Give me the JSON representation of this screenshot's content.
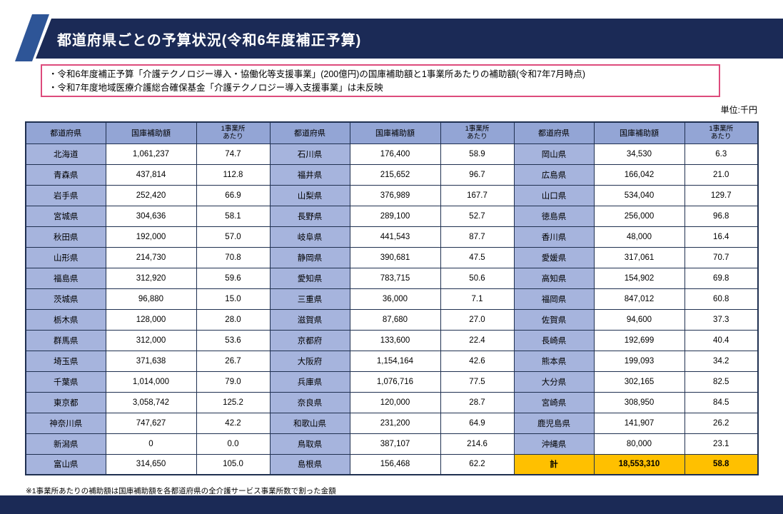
{
  "title": "都道府県ごとの予算状況(令和6年度補正予算)",
  "notes": [
    "・令和6年度補正予算「介護テクノロジー導入・協働化等支援事業」(200億円)の国庫補助額と1事業所あたりの補助額(令和7年7月時点)",
    "・令和7年度地域医療介護総合確保基金「介護テクノロジー導入支援事業」は未反映"
  ],
  "unit_label": "単位:千円",
  "footnote": "※1事業所あたりの補助額は国庫補助額を各都道府県の全介護サービス事業所数で割った金額",
  "colors": {
    "navy": "#1B2A56",
    "accent_blue": "#2E5597",
    "header_blue": "#93A5D5",
    "cell_blue": "#A6B4DD",
    "border": "#1F3050",
    "total_orange": "#FFC000",
    "note_border_pink": "#DD4B7C"
  },
  "table": {
    "col_headers": [
      "都道府県",
      "国庫補助額",
      "1事業所\nあたり"
    ],
    "groups": [
      {
        "rows": [
          [
            "北海道",
            "1,061,237",
            "74.7"
          ],
          [
            "青森県",
            "437,814",
            "112.8"
          ],
          [
            "岩手県",
            "252,420",
            "66.9"
          ],
          [
            "宮城県",
            "304,636",
            "58.1"
          ],
          [
            "秋田県",
            "192,000",
            "57.0"
          ],
          [
            "山形県",
            "214,730",
            "70.8"
          ],
          [
            "福島県",
            "312,920",
            "59.6"
          ],
          [
            "茨城県",
            "96,880",
            "15.0"
          ],
          [
            "栃木県",
            "128,000",
            "28.0"
          ],
          [
            "群馬県",
            "312,000",
            "53.6"
          ],
          [
            "埼玉県",
            "371,638",
            "26.7"
          ],
          [
            "千葉県",
            "1,014,000",
            "79.0"
          ],
          [
            "東京都",
            "3,058,742",
            "125.2"
          ],
          [
            "神奈川県",
            "747,627",
            "42.2"
          ],
          [
            "新潟県",
            "0",
            "0.0"
          ],
          [
            "富山県",
            "314,650",
            "105.0"
          ]
        ]
      },
      {
        "rows": [
          [
            "石川県",
            "176,400",
            "58.9"
          ],
          [
            "福井県",
            "215,652",
            "96.7"
          ],
          [
            "山梨県",
            "376,989",
            "167.7"
          ],
          [
            "長野県",
            "289,100",
            "52.7"
          ],
          [
            "岐阜県",
            "441,543",
            "87.7"
          ],
          [
            "静岡県",
            "390,681",
            "47.5"
          ],
          [
            "愛知県",
            "783,715",
            "50.6"
          ],
          [
            "三重県",
            "36,000",
            "7.1"
          ],
          [
            "滋賀県",
            "87,680",
            "27.0"
          ],
          [
            "京都府",
            "133,600",
            "22.4"
          ],
          [
            "大阪府",
            "1,154,164",
            "42.6"
          ],
          [
            "兵庫県",
            "1,076,716",
            "77.5"
          ],
          [
            "奈良県",
            "120,000",
            "28.7"
          ],
          [
            "和歌山県",
            "231,200",
            "64.9"
          ],
          [
            "鳥取県",
            "387,107",
            "214.6"
          ],
          [
            "島根県",
            "156,468",
            "62.2"
          ]
        ]
      },
      {
        "rows": [
          [
            "岡山県",
            "34,530",
            "6.3"
          ],
          [
            "広島県",
            "166,042",
            "21.0"
          ],
          [
            "山口県",
            "534,040",
            "129.7"
          ],
          [
            "徳島県",
            "256,000",
            "96.8"
          ],
          [
            "香川県",
            "48,000",
            "16.4"
          ],
          [
            "愛媛県",
            "317,061",
            "70.7"
          ],
          [
            "高知県",
            "154,902",
            "69.8"
          ],
          [
            "福岡県",
            "847,012",
            "60.8"
          ],
          [
            "佐賀県",
            "94,600",
            "37.3"
          ],
          [
            "長崎県",
            "192,699",
            "40.4"
          ],
          [
            "熊本県",
            "199,093",
            "34.2"
          ],
          [
            "大分県",
            "302,165",
            "82.5"
          ],
          [
            "宮崎県",
            "308,950",
            "84.5"
          ],
          [
            "鹿児島県",
            "141,907",
            "26.2"
          ],
          [
            "沖縄県",
            "80,000",
            "23.1"
          ]
        ]
      }
    ],
    "total_row": {
      "label": "計",
      "amount": "18,553,310",
      "per": "58.8"
    }
  }
}
